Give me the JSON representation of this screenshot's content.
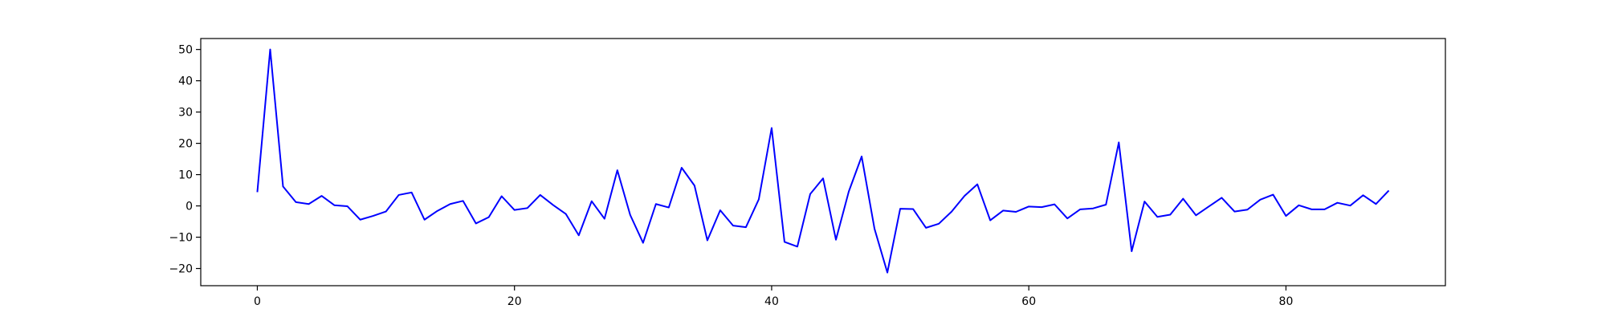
{
  "chart_data": {
    "type": "line",
    "title": "",
    "xlabel": "",
    "ylabel": "",
    "xlim": [
      -4.4,
      92.4
    ],
    "ylim": [
      -25.5,
      53.5
    ],
    "xticks": [
      0,
      20,
      40,
      60,
      80
    ],
    "yticks": [
      -20,
      -10,
      0,
      10,
      20,
      30,
      40,
      50
    ],
    "grid": false,
    "legend": "none",
    "series": [
      {
        "color": "#0000ff",
        "x": [
          0,
          1,
          2,
          3,
          4,
          5,
          6,
          7,
          8,
          9,
          10,
          11,
          12,
          13,
          14,
          15,
          16,
          17,
          18,
          19,
          20,
          21,
          22,
          23,
          24,
          25,
          26,
          27,
          28,
          29,
          30,
          31,
          32,
          33,
          34,
          35,
          36,
          37,
          38,
          39,
          40,
          41,
          42,
          43,
          44,
          45,
          46,
          47,
          48,
          49,
          50,
          51,
          52,
          53,
          54,
          55,
          56,
          57,
          58,
          59,
          60,
          61,
          62,
          63,
          64,
          65,
          66,
          67,
          68,
          69,
          70,
          71,
          72,
          73,
          74,
          75,
          76,
          77,
          78,
          79,
          80,
          81,
          82,
          83,
          84,
          85,
          86,
          87,
          88
        ],
        "values": [
          4.4,
          50.0,
          6.2,
          1.2,
          0.6,
          3.2,
          0.2,
          -0.1,
          -4.4,
          -3.2,
          -1.8,
          3.5,
          4.3,
          -4.4,
          -1.6,
          0.6,
          1.6,
          -5.6,
          -3.6,
          3.1,
          -1.3,
          -0.7,
          3.5,
          0.3,
          -2.6,
          -9.4,
          1.5,
          -4.1,
          11.4,
          -2.9,
          -11.8,
          0.6,
          -0.5,
          12.2,
          6.5,
          -11.0,
          -1.4,
          -6.3,
          -6.8,
          2.1,
          24.9,
          -11.5,
          -13.0,
          3.8,
          8.8,
          -10.8,
          4.6,
          15.8,
          -7.3,
          -21.3,
          -0.9,
          -1.0,
          -7.0,
          -5.7,
          -1.8,
          3.2,
          6.9,
          -4.6,
          -1.5,
          -1.9,
          -0.2,
          -0.4,
          0.5,
          -4.0,
          -1.1,
          -0.8,
          0.4,
          20.3,
          -14.5,
          1.4,
          -3.5,
          -2.8,
          2.3,
          -3.0,
          -0.2,
          2.6,
          -1.8,
          -1.2,
          2.0,
          3.6,
          -3.2,
          0.2,
          -1.1,
          -1.1,
          1.0,
          0.1,
          3.4,
          0.6,
          4.9
        ]
      }
    ]
  }
}
